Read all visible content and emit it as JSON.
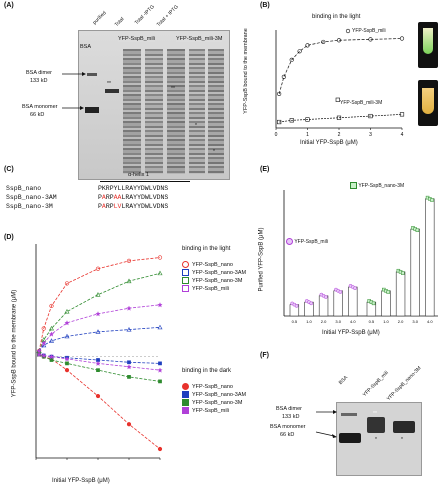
{
  "colors": {
    "nano": "#e8322c",
    "nano3am": "#1f3fbf",
    "nano3m": "#2e8b2e",
    "mili": "#b040d8",
    "grey": "#444444",
    "tube_green": "#7cd35a",
    "tube_yellow": "#e0b040"
  },
  "panelA": {
    "label": "(A)",
    "lane_bsa": "BSA",
    "lane_purified": "purified",
    "lane_total": "Total",
    "lane_total_minus": "Total -IPTG",
    "lane_total_plus": "Total + IPTG",
    "group1": "YFP-SspB_mili",
    "group2": "YFP-SspB_mili-3M",
    "dimer": "BSA dimer",
    "dimer_kd": "133 kD",
    "monomer": "BSA monomer",
    "monomer_kd": "66 kD",
    "marks": [
      "**",
      "**",
      "*",
      "*"
    ]
  },
  "panelB": {
    "label": "(B)",
    "title": "binding in the light",
    "ylabel": "YFP-SspB bound to the membrane",
    "xlabel": "Initial YFP-SspB (μM)",
    "legend1": "YFP-SspB_mili",
    "legend2": "YFP-SspB_mili-3M",
    "xticks": [
      "0",
      "1",
      "2",
      "3",
      "4"
    ]
  },
  "panelC": {
    "label": "(C)",
    "helix": "α-helix 1",
    "rows": [
      {
        "name": "SspB_nano",
        "seq": "PKRPYLLRAYYDWLVDNS"
      },
      {
        "name": "SspB_nano-3AM",
        "seq": "PARPAALRAYYDWLVDNS"
      },
      {
        "name": "SspB_nano-3M",
        "seq": "PARPLVLRAYYDWLVDNS"
      }
    ]
  },
  "panelD": {
    "label": "(D)",
    "ylabel": "YFP-SspB bound to the membrane (μM)",
    "xlabel": "Initial YFP-SspB (μM)",
    "light_title": "binding in the light",
    "dark_title": "binding in the dark",
    "legend_light": [
      "YFP-SspB_nano",
      "YFP-SspB_nano-3AM",
      "YFP-SspB_nano-3M",
      "YFP-SspB_mili"
    ],
    "legend_dark": [
      "YFP-SspB_nano",
      "YFP-SspB_nano-3AM",
      "YFP-SspB_nano-3M",
      "YFP-SspB_mili"
    ],
    "xticks": [
      "0",
      "1",
      "2",
      "3",
      "4"
    ]
  },
  "panelE": {
    "label": "(E)",
    "ylabel": "Purified YFP-SspB (μM)",
    "xlabel": "Initial YFP-SspB (μM)",
    "legend_mili": "YFP-SspB_mili",
    "legend_3m": "YFP-SspB_nano-3M",
    "xticks": [
      "0.5",
      "1.0",
      "2.0",
      "3.0",
      "4.0",
      "0.5",
      "1.0",
      "2.0",
      "3.0",
      "4.0"
    ],
    "mili_values": [
      0.09,
      0.11,
      0.16,
      0.2,
      0.23
    ],
    "nano3m_values": [
      0.11,
      0.2,
      0.35,
      0.69,
      0.93
    ]
  },
  "panelF": {
    "label": "(F)",
    "lane1": "BSA",
    "lane2": "YFP-SspB_mili",
    "lane3": "YFP-SspB_nano-3M",
    "dimer": "BSA dimer",
    "dimer_kd": "133 kD",
    "monomer": "BSA monomer",
    "monomer_kd": "66 kD",
    "marks": [
      "**",
      "*",
      "*"
    ]
  },
  "chart_data": [
    {
      "type": "scatter",
      "title": "binding in the light",
      "xlabel": "Initial YFP-SspB (μM)",
      "ylabel": "YFP-SspB bound to the membrane",
      "xlim": [
        0,
        4
      ],
      "series": [
        {
          "name": "YFP-SspB_mili",
          "x": [
            0.1,
            0.25,
            0.5,
            0.75,
            1.0,
            1.5,
            2.0,
            3.0,
            4.0
          ],
          "y": [
            0.35,
            0.55,
            0.75,
            0.85,
            0.92,
            0.96,
            0.98,
            0.99,
            1.0
          ]
        },
        {
          "name": "YFP-SspB_mili-3M",
          "x": [
            0.1,
            0.5,
            1.0,
            2.0,
            3.0,
            4.0
          ],
          "y": [
            0.02,
            0.04,
            0.05,
            0.07,
            0.09,
            0.11
          ]
        }
      ]
    },
    {
      "type": "scatter",
      "xlabel": "Initial YFP-SspB (μM)",
      "ylabel": "YFP-SspB bound to the membrane (μM)",
      "xlim": [
        0,
        4
      ],
      "series": [
        {
          "name": "YFP-SspB_nano (light)",
          "x": [
            0.1,
            0.25,
            0.5,
            1,
            2,
            3,
            4
          ],
          "y": [
            0.05,
            0.25,
            0.45,
            0.65,
            0.78,
            0.85,
            0.88
          ]
        },
        {
          "name": "YFP-SspB_nano-3AM (light)",
          "x": [
            0.1,
            0.25,
            0.5,
            1,
            2,
            3,
            4
          ],
          "y": [
            0.05,
            0.1,
            0.14,
            0.18,
            0.22,
            0.24,
            0.26
          ]
        },
        {
          "name": "YFP-SspB_nano-3M (light)",
          "x": [
            0.1,
            0.25,
            0.5,
            1,
            2,
            3,
            4
          ],
          "y": [
            0.05,
            0.15,
            0.25,
            0.4,
            0.55,
            0.67,
            0.74
          ]
        },
        {
          "name": "YFP-SspB_mili (light)",
          "x": [
            0.1,
            0.25,
            0.5,
            1,
            2,
            3,
            4
          ],
          "y": [
            0.05,
            0.12,
            0.2,
            0.3,
            0.38,
            0.43,
            0.46
          ]
        },
        {
          "name": "YFP-SspB_nano (dark)",
          "x": [
            0.1,
            0.25,
            0.5,
            1,
            2,
            3,
            4
          ],
          "y": [
            0.02,
            0.0,
            -0.02,
            -0.12,
            -0.35,
            -0.6,
            -0.82
          ]
        },
        {
          "name": "YFP-SspB_nano-3AM (dark)",
          "x": [
            0.1,
            0.25,
            0.5,
            1,
            2,
            3,
            4
          ],
          "y": [
            0.02,
            0.01,
            0.0,
            -0.01,
            -0.03,
            -0.05,
            -0.06
          ]
        },
        {
          "name": "YFP-SspB_nano-3M (dark)",
          "x": [
            0.1,
            0.25,
            0.5,
            1,
            2,
            3,
            4
          ],
          "y": [
            0.02,
            0.0,
            -0.03,
            -0.06,
            -0.12,
            -0.18,
            -0.22
          ]
        },
        {
          "name": "YFP-SspB_mili (dark)",
          "x": [
            0.1,
            0.25,
            0.5,
            1,
            2,
            3,
            4
          ],
          "y": [
            0.02,
            0.01,
            0.0,
            -0.02,
            -0.06,
            -0.09,
            -0.12
          ]
        }
      ]
    },
    {
      "type": "bar",
      "xlabel": "Initial YFP-SspB (μM)",
      "ylabel": "Purified YFP-SspB (μM)",
      "categories": [
        "0.5",
        "1.0",
        "2.0",
        "3.0",
        "4.0"
      ],
      "series": [
        {
          "name": "YFP-SspB_mili",
          "values": [
            0.09,
            0.11,
            0.16,
            0.2,
            0.23
          ]
        },
        {
          "name": "YFP-SspB_nano-3M",
          "values": [
            0.11,
            0.2,
            0.35,
            0.69,
            0.93
          ]
        }
      ]
    }
  ]
}
